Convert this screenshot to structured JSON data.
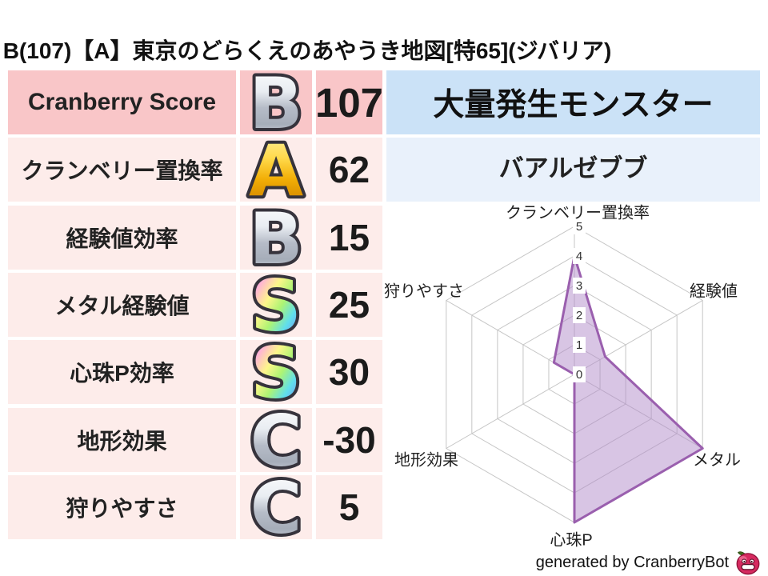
{
  "title": "B(107)【A】東京のどらくえのあやうき地図[特65](ジバリア)",
  "stats_table": {
    "rows": [
      {
        "label": "Cranberry Score",
        "grade": "B",
        "grade_style": "silver",
        "value": "107",
        "highlight": true
      },
      {
        "label": "クランベリー置換率",
        "grade": "A",
        "grade_style": "gold",
        "value": "62",
        "highlight": false
      },
      {
        "label": "経験値効率",
        "grade": "B",
        "grade_style": "silver",
        "value": "15",
        "highlight": false
      },
      {
        "label": "メタル経験値",
        "grade": "S",
        "grade_style": "rainbow",
        "value": "25",
        "highlight": false
      },
      {
        "label": "心珠P効率",
        "grade": "S",
        "grade_style": "rainbow",
        "value": "30",
        "highlight": false
      },
      {
        "label": "地形効果",
        "grade": "C",
        "grade_style": "silver",
        "value": "-30",
        "highlight": false
      },
      {
        "label": "狩りやすさ",
        "grade": "C",
        "grade_style": "silver",
        "value": "5",
        "highlight": false
      }
    ]
  },
  "monster_panel": {
    "header": "大量発生モンスター",
    "monster_name": "バアルゼブブ"
  },
  "chart_data": {
    "type": "radar",
    "axes_order": "clockwise-from-top",
    "axes": [
      "クランベリー置換率",
      "経験値",
      "メタル",
      "心珠P",
      "地形効果",
      "狩りやすさ"
    ],
    "values": [
      4,
      1.2,
      5,
      5,
      0,
      0.8
    ],
    "min": 0,
    "max": 5,
    "ticks": [
      0,
      1,
      2,
      3,
      4,
      5
    ],
    "grid": "hexagon",
    "fill_color": "#b18cc9",
    "fill_opacity": 0.5,
    "line_color": "#9a5fae",
    "grid_color": "#c5c5c5"
  },
  "footer": {
    "credit": "generated by CranberryBot",
    "mascot_icon": "cranberry-mascot-icon"
  },
  "colors": {
    "row_highlight_bg": "#f9c6c8",
    "row_bg": "#fdecea",
    "panel_header_bg": "#cbe2f7",
    "panel_value_bg": "#e9f1fb"
  }
}
